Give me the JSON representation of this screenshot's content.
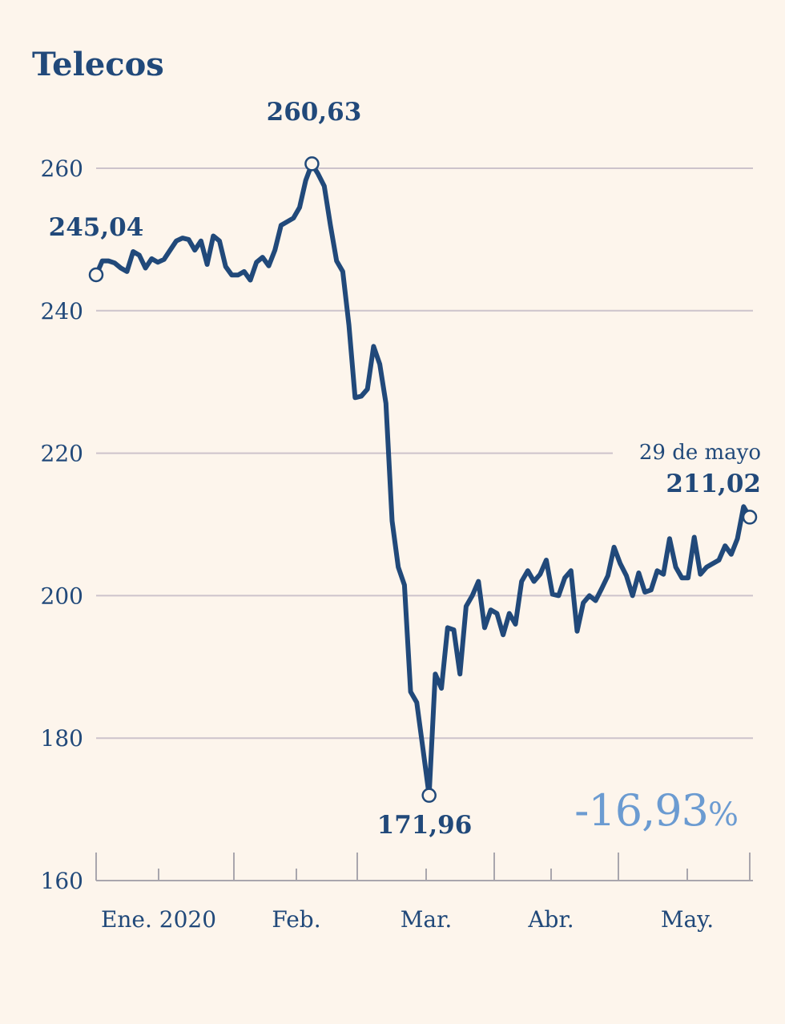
{
  "colors": {
    "background": "#fdf5ec",
    "line": "#21497a",
    "accent": "#6b9bd1",
    "grid": "#cdc3cb"
  },
  "chart_data": {
    "type": "line",
    "title": "Telecos",
    "xlabel": "",
    "ylabel": "",
    "ylim": [
      160,
      265
    ],
    "yticks": [
      260,
      240,
      220,
      200,
      180,
      160
    ],
    "grid": true,
    "x_month_labels": [
      "Ene. 2020",
      "Feb.",
      "Mar.",
      "Abr.",
      "May."
    ],
    "series": [
      {
        "values": [
          245.0,
          247.0,
          247.0,
          246.7,
          246.0,
          245.5,
          248.3,
          247.8,
          246.0,
          247.3,
          246.8,
          247.2,
          248.5,
          249.8,
          250.2,
          250.0,
          248.5,
          249.8,
          246.5,
          250.5,
          249.8,
          246.2,
          245.0,
          245.0,
          245.5,
          244.3,
          246.8,
          247.5,
          246.3,
          248.5,
          252.0,
          252.5,
          253.0,
          254.5,
          258.3,
          260.63,
          259.2,
          257.5,
          252.0,
          247.0,
          245.5,
          238.0,
          227.8,
          228.0,
          229.0,
          235.0,
          232.5,
          227.0,
          210.5,
          204.0,
          201.5,
          186.5,
          185.0,
          178.5,
          171.96,
          189.0,
          187.0,
          195.5,
          195.2,
          189.0,
          198.5,
          200.0,
          202.0,
          195.5,
          198.0,
          197.5,
          194.5,
          197.5,
          196.0,
          202.0,
          203.5,
          202.0,
          203.0,
          205.0,
          200.2,
          200.0,
          202.5,
          203.5,
          195.0,
          199.0,
          200.0,
          199.3,
          201.0,
          202.8,
          206.8,
          204.5,
          202.8,
          200.0,
          203.2,
          200.5,
          200.8,
          203.5,
          203.0,
          208.0,
          204.0,
          202.5,
          202.5,
          208.2,
          203.0,
          204.0,
          204.5,
          205.0,
          207.0,
          205.8,
          208.0,
          212.5,
          211.02
        ]
      }
    ],
    "annotations": [
      {
        "index": 0,
        "value": 245.04,
        "label": "245,04"
      },
      {
        "index": 35,
        "value": 260.63,
        "label": "260,63"
      },
      {
        "index": 54,
        "value": 171.96,
        "label": "171,96"
      },
      {
        "index": 106,
        "value": 211.02,
        "label": "211,02",
        "note": "29 de mayo"
      }
    ],
    "change_label": "-16,93",
    "change_unit": "%"
  }
}
